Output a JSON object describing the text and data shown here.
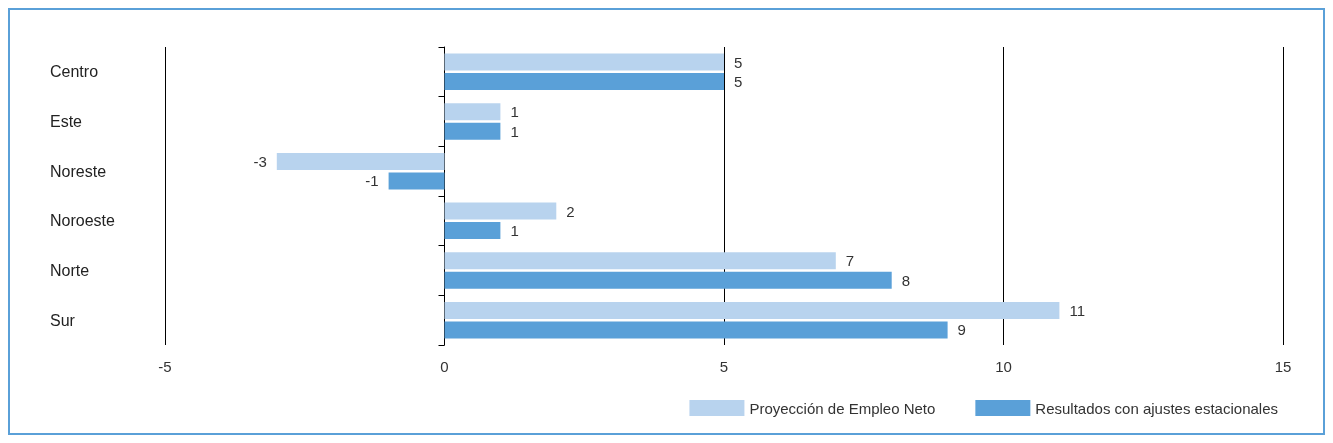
{
  "chart_data": {
    "type": "bar",
    "orientation": "horizontal",
    "categories": [
      "Centro",
      "Este",
      "Noreste",
      "Noroeste",
      "Norte",
      "Sur"
    ],
    "series": [
      {
        "name": "Proyección de Empleo Neto",
        "color": "#b8d3ee",
        "values": [
          5,
          1,
          -3,
          2,
          7,
          11
        ]
      },
      {
        "name": "Resultados con ajustes estacionales",
        "color": "#5aa0d8",
        "values": [
          5,
          1,
          -1,
          1,
          8,
          9
        ]
      }
    ],
    "xlim": [
      -5,
      15
    ],
    "xticks": [
      -5,
      0,
      5,
      10,
      15
    ],
    "grid": "x",
    "legend": "bottom right",
    "data_labels": true
  }
}
